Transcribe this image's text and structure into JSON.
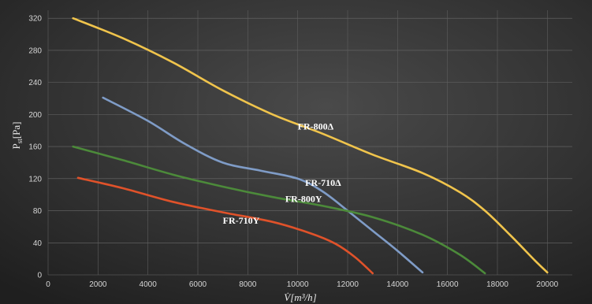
{
  "chart_data": {
    "type": "line",
    "title": "",
    "xlabel": "V̇[m³/h]",
    "ylabel": "Pst[Pa]",
    "ylabel_main": "P",
    "ylabel_sub": "st",
    "ylabel_unit": "[Pa]",
    "xlim": [
      0,
      21000
    ],
    "ylim": [
      0,
      330
    ],
    "x_ticks": [
      "0",
      "2000",
      "4000",
      "6000",
      "8000",
      "10000",
      "12000",
      "14000",
      "16000",
      "18000",
      "20000"
    ],
    "y_ticks": [
      "0",
      "40",
      "80",
      "120",
      "160",
      "200",
      "240",
      "280",
      "320"
    ],
    "grid": true,
    "legend": "inline labels",
    "series": [
      {
        "name": "FR-800Δ",
        "color": "#f0c44c",
        "points": [
          [
            1000,
            320
          ],
          [
            3000,
            295
          ],
          [
            5000,
            265
          ],
          [
            7000,
            230
          ],
          [
            9000,
            200
          ],
          [
            11000,
            176
          ],
          [
            13000,
            150
          ],
          [
            15000,
            127
          ],
          [
            16500,
            103
          ],
          [
            17500,
            80
          ],
          [
            18500,
            50
          ],
          [
            19500,
            18
          ],
          [
            20000,
            3
          ]
        ]
      },
      {
        "name": "FR-710Δ",
        "color": "#7f9cc7",
        "points": [
          [
            2200,
            221
          ],
          [
            4000,
            192
          ],
          [
            5500,
            163
          ],
          [
            7000,
            140
          ],
          [
            8500,
            130
          ],
          [
            10000,
            120
          ],
          [
            11000,
            104
          ],
          [
            12000,
            80
          ],
          [
            13000,
            55
          ],
          [
            14000,
            30
          ],
          [
            15000,
            3
          ]
        ]
      },
      {
        "name": "FR-800Y",
        "color": "#4c8a3a",
        "points": [
          [
            1000,
            160
          ],
          [
            3000,
            143
          ],
          [
            5000,
            125
          ],
          [
            7000,
            110
          ],
          [
            9000,
            97
          ],
          [
            11000,
            86
          ],
          [
            13000,
            72
          ],
          [
            15000,
            50
          ],
          [
            16500,
            25
          ],
          [
            17500,
            2
          ]
        ]
      },
      {
        "name": "FR-710Y",
        "color": "#e0522a",
        "points": [
          [
            1200,
            121
          ],
          [
            3000,
            108
          ],
          [
            5000,
            91
          ],
          [
            7000,
            78
          ],
          [
            9000,
            66
          ],
          [
            10500,
            52
          ],
          [
            11500,
            39
          ],
          [
            12300,
            22
          ],
          [
            13000,
            2
          ]
        ]
      }
    ],
    "annotations": [
      {
        "text": "FR-800Δ",
        "x": 10000,
        "y": 181
      },
      {
        "text": "FR-710Δ",
        "x": 10300,
        "y": 111
      },
      {
        "text": "FR-800Y",
        "x": 9500,
        "y": 91
      },
      {
        "text": "FR-710Y",
        "x": 7000,
        "y": 64
      }
    ]
  }
}
